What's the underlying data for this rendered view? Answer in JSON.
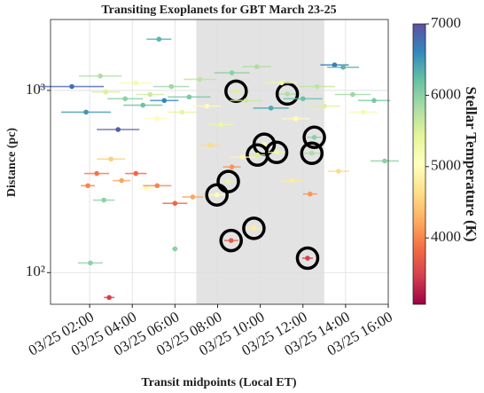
{
  "chart_data": {
    "type": "scatter",
    "title": "Transiting Exoplanets for GBT March 23-25",
    "x_label": "Transit midpoints (Local ET)",
    "y_label": "Distance (pc)",
    "colorbar_label": "Stellar Temperature (K)",
    "xlim": [
      "03/25 00:10",
      "03/25 16:00"
    ],
    "xticks": [
      "03/25 02:00",
      "03/25 04:00",
      "03/25 06:00",
      "03/25 08:00",
      "03/25 10:00",
      "03/25 12:00",
      "03/25 14:00",
      "03/25 16:00"
    ],
    "ylim": [
      67,
      2450
    ],
    "yticks": [
      {
        "value": 100,
        "label": "10²"
      },
      {
        "value": 1000,
        "label": "10³"
      }
    ],
    "log_y": true,
    "grid": true,
    "shade": [
      "03/25 07:00",
      "03/25 13:00"
    ],
    "clim": [
      3070,
      7000
    ],
    "cticks": [
      4000,
      5000,
      6000,
      7000
    ],
    "colormap": [
      "#9e0142",
      "#d53e4f",
      "#f46d43",
      "#fdae61",
      "#fee08b",
      "#ffffbf",
      "#e6f598",
      "#abdda4",
      "#66c2a5",
      "#3288bd",
      "#5e4fa2"
    ],
    "series": [
      {
        "x": [
          "03/25 08:52",
          "03/25 11:16",
          "03/25 10:11",
          "03/25 09:52",
          "03/25 10:46",
          "03/25 12:32",
          "03/25 12:25",
          "03/25 08:30",
          "03/25 07:58",
          "03/25 09:42",
          "03/25 08:38",
          "03/25 12:13",
          "03/25 01:10",
          "03/25 01:50",
          "03/25 02:30",
          "03/25 02:45",
          "03/25 03:20",
          "03/25 03:40",
          "03/25 04:10",
          "03/25 04:30",
          "03/25 04:50",
          "03/25 05:10",
          "03/25 05:15",
          "03/25 05:30",
          "03/25 05:50",
          "03/25 06:20",
          "03/25 06:40",
          "03/25 07:10",
          "03/25 07:30",
          "03/25 08:10",
          "03/25 08:40",
          "03/25 09:20",
          "03/25 09:50",
          "03/25 10:30",
          "03/25 11:00",
          "03/25 11:40",
          "03/25 12:00",
          "03/25 12:40",
          "03/25 13:00",
          "03/25 13:29",
          "03/25 13:53",
          "03/25 14:20",
          "03/25 14:50",
          "03/25 15:20",
          "03/25 15:50",
          "03/25 01:55",
          "03/25 02:20",
          "03/25 02:40",
          "03/25 03:00",
          "03/25 03:30",
          "03/25 04:10",
          "03/25 04:40",
          "03/25 05:10",
          "03/25 06:00",
          "03/25 06:50",
          "03/25 07:40",
          "03/25 08:40",
          "03/25 09:10",
          "03/25 11:30",
          "03/25 12:20",
          "03/25 13:40",
          "03/25 02:02",
          "03/25 02:55",
          "03/25 06:00"
        ],
        "values": [
          990,
          956,
          506,
          442,
          457,
          553,
          452,
          316,
          267,
          175,
          150,
          120,
          1050,
          760,
          1200,
          980,
          610,
          900,
          1100,
          830,
          950,
          700,
          1910,
          880,
          1050,
          760,
          920,
          1150,
          820,
          650,
          1250,
          880,
          1350,
          800,
          1100,
          700,
          900,
          1050,
          820,
          1380,
          1340,
          950,
          760,
          880,
          410,
          300,
          350,
          250,
          420,
          320,
          350,
          290,
          300,
          240,
          260,
          500,
          380,
          430,
          320,
          270,
          360,
          113,
          73,
          135
        ],
        "xerr": [
          20,
          25,
          30,
          25,
          30,
          20,
          25,
          20,
          25,
          20,
          20,
          15,
          90,
          70,
          60,
          40,
          60,
          50,
          45,
          55,
          40,
          35,
          35,
          40,
          50,
          40,
          60,
          45,
          40,
          35,
          50,
          45,
          40,
          50,
          45,
          40,
          55,
          50,
          45,
          40,
          45,
          50,
          40,
          45,
          40,
          20,
          35,
          30,
          40,
          25,
          30,
          20,
          40,
          35,
          30,
          30,
          25,
          35,
          30,
          20,
          30,
          35,
          15,
          8
        ],
        "temp": [
          5500,
          5800,
          5200,
          5500,
          5300,
          6000,
          5800,
          5400,
          5000,
          4800,
          3700,
          3500,
          6800,
          6500,
          5800,
          5500,
          6900,
          6000,
          5200,
          6200,
          5600,
          5000,
          6300,
          6600,
          5900,
          5400,
          6100,
          5700,
          5100,
          5300,
          6000,
          5600,
          5800,
          6400,
          5300,
          5000,
          6200,
          5700,
          5500,
          6700,
          6300,
          5900,
          5200,
          6100,
          6000,
          4000,
          3900,
          6000,
          4500,
          4200,
          3800,
          5000,
          4000,
          3800,
          4200,
          4600,
          4100,
          4900,
          4800,
          4100,
          4600,
          6000,
          3500,
          6000
        ],
        "highlight": [
          true,
          true,
          true,
          true,
          true,
          true,
          true,
          true,
          true,
          true,
          true,
          true,
          false,
          false,
          false,
          false,
          false,
          false,
          false,
          false,
          false,
          false,
          false,
          false,
          false,
          false,
          false,
          false,
          false,
          false,
          false,
          false,
          false,
          false,
          false,
          false,
          false,
          false,
          false,
          false,
          false,
          false,
          false,
          false,
          false,
          false,
          false,
          false,
          false,
          false,
          false,
          false,
          false,
          false,
          false,
          false,
          false,
          false,
          false,
          false,
          false,
          false,
          false,
          false
        ]
      }
    ]
  }
}
